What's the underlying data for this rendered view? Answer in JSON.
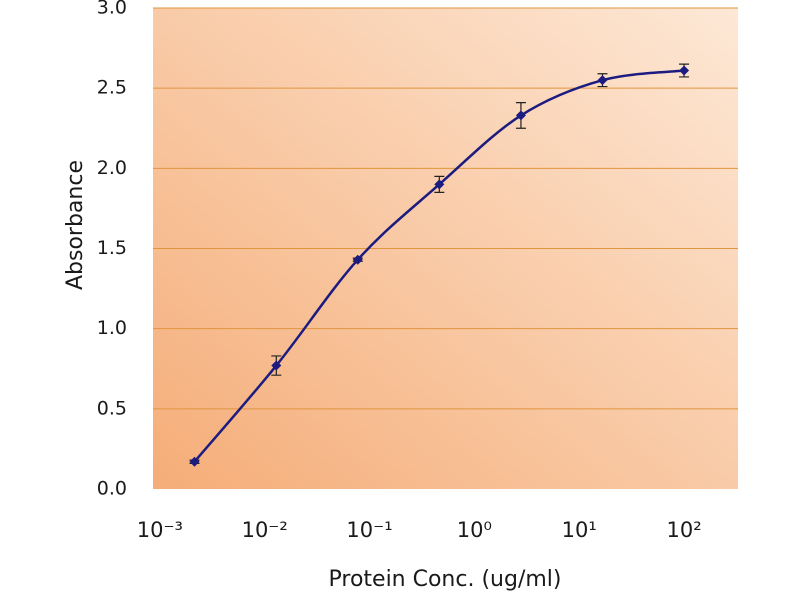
{
  "chart_data": {
    "type": "line",
    "x_label": "Protein Conc. (ug/ml)",
    "y_label": "Absorbance",
    "x_scale": "log",
    "xlim": [
      0.00086,
      327
    ],
    "xticks": [
      {
        "value": 0.001,
        "label": "10⁻³"
      },
      {
        "value": 0.01,
        "label": "10⁻²"
      },
      {
        "value": 0.1,
        "label": "10⁻¹"
      },
      {
        "value": 1,
        "label": "10⁰"
      },
      {
        "value": 10,
        "label": "10¹"
      },
      {
        "value": 100,
        "label": "10²"
      }
    ],
    "ylim": [
      0,
      3
    ],
    "yticks": [
      {
        "value": 0,
        "label": "0.0"
      },
      {
        "value": 0.5,
        "label": "0.5"
      },
      {
        "value": 1,
        "label": "1.0"
      },
      {
        "value": 1.5,
        "label": "1.5"
      },
      {
        "value": 2,
        "label": "2.0"
      },
      {
        "value": 2.5,
        "label": "2.5"
      },
      {
        "value": 3,
        "label": "3.0"
      }
    ],
    "grid": true,
    "grid_color": "#e0953f",
    "series": [
      {
        "color": "#1c1c80",
        "x": [
          0.00214,
          0.0129,
          0.0772,
          0.463,
          2.78,
          16.67,
          100
        ],
        "values": [
          0.17,
          0.77,
          1.43,
          1.9,
          2.33,
          2.55,
          2.61
        ],
        "errors": [
          0.01,
          0.06,
          0.01,
          0.05,
          0.08,
          0.04,
          0.04
        ]
      }
    ]
  }
}
